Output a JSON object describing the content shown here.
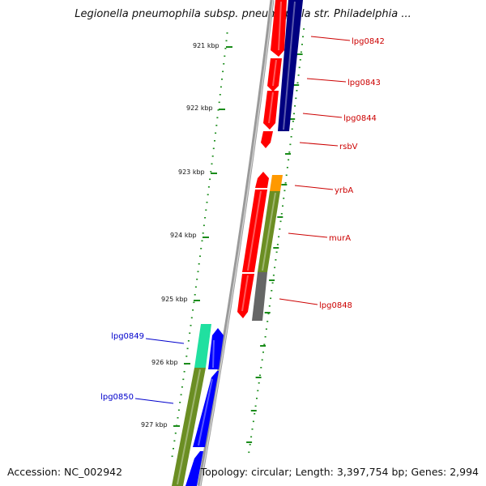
{
  "title": "Legionella pneumophila subsp. pneumophila str. Philadelphia ...",
  "footer": {
    "accession": "Accession: NC_002942",
    "summary": "Topology: circular; Length: 3,397,754 bp; Genes: 2,994"
  },
  "colors": {
    "forward_gene": "#ff0000",
    "reverse_gene": "#0000ff",
    "forward_label": "#cc0000",
    "reverse_label": "#0000cc",
    "backbone": "#888888",
    "tick": "#1a8c1a",
    "olive": "#6b8e23",
    "orange": "#ff9900",
    "navy": "#000080",
    "gray": "#666666",
    "aqua": "#20e0a0"
  },
  "kbp_labels": [
    "921 kbp",
    "922 kbp",
    "923 kbp",
    "924 kbp",
    "925 kbp",
    "926 kbp",
    "927 kbp"
  ],
  "genes": [
    {
      "name": "lpg0842",
      "strand": "forward"
    },
    {
      "name": "lpg0843",
      "strand": "forward"
    },
    {
      "name": "lpg0844",
      "strand": "forward"
    },
    {
      "name": "rsbV",
      "strand": "forward"
    },
    {
      "name": "yrbA",
      "strand": "forward"
    },
    {
      "name": "murA",
      "strand": "forward"
    },
    {
      "name": "lpg0848",
      "strand": "forward"
    },
    {
      "name": "lpg0849",
      "strand": "reverse"
    },
    {
      "name": "lpg0850",
      "strand": "reverse"
    }
  ]
}
